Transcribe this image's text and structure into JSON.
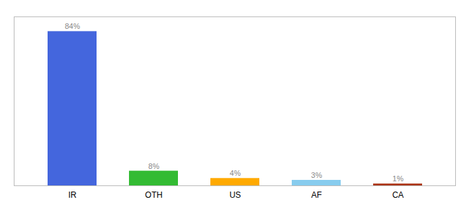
{
  "chart_data": {
    "type": "bar",
    "categories": [
      "IR",
      "OTH",
      "US",
      "AF",
      "CA"
    ],
    "values": [
      84,
      8,
      4,
      3,
      1
    ],
    "value_labels": [
      "84%",
      "8%",
      "4%",
      "3%",
      "1%"
    ],
    "colors": [
      "#4466dd",
      "#33bb33",
      "#ffaa00",
      "#88ccee",
      "#aa3311"
    ],
    "ylim": [
      0,
      92
    ],
    "data_labels": true,
    "tick_labels": "x",
    "grid": false
  }
}
